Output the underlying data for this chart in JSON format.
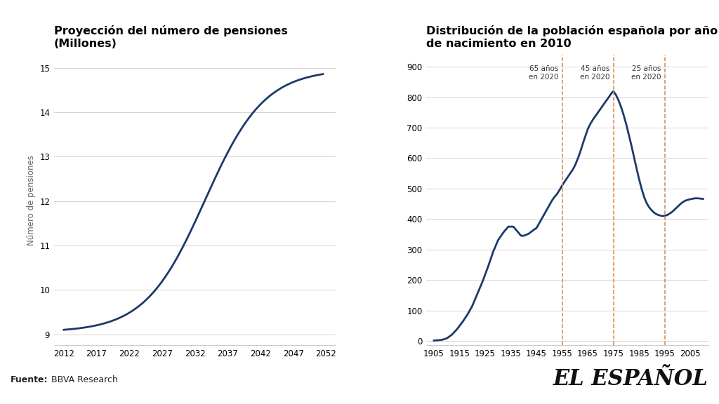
{
  "chart1": {
    "title": "Proyección del número de pensiones\n(Millones)",
    "ylabel": "Número de pensiones",
    "line_color": "#1b3a6b",
    "xticks": [
      2012,
      2017,
      2022,
      2027,
      2032,
      2037,
      2042,
      2047,
      2052
    ],
    "yticks": [
      9,
      10,
      11,
      12,
      13,
      14,
      15
    ],
    "ylim": [
      8.75,
      15.3
    ],
    "xlim": [
      2010.5,
      2053.5
    ]
  },
  "chart2": {
    "title": "Distribución de la población española por año\nde nacimiento en 2010",
    "line_color": "#1b3a6b",
    "xticks": [
      1905,
      1915,
      1925,
      1935,
      1945,
      1955,
      1965,
      1975,
      1985,
      1995,
      2005
    ],
    "yticks": [
      0,
      100,
      200,
      300,
      400,
      500,
      600,
      700,
      800,
      900
    ],
    "ylim": [
      -15,
      940
    ],
    "xlim": [
      1902,
      2012
    ],
    "vlines": [
      {
        "x": 1955,
        "label": "65 años\nen 2020"
      },
      {
        "x": 1975,
        "label": "45 años\nen 2020"
      },
      {
        "x": 1995,
        "label": "25 años\nen 2020"
      }
    ],
    "vline_color": "#d4894a"
  },
  "source_bold": "Fuente:",
  "source_normal": " BBVA Research",
  "logo_text": "EL ESPAÑOL",
  "bg_color": "#ffffff",
  "grid_color": "#cccccc",
  "title_fontsize": 11.5,
  "axis_fontsize": 8.5,
  "tick_fontsize": 8.5
}
